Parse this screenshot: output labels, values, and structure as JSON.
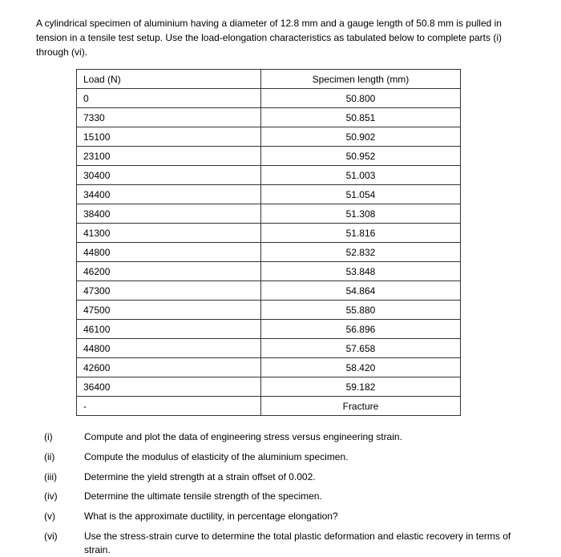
{
  "problem": {
    "statement": "A cylindrical specimen of aluminium having a diameter of 12.8 mm and a gauge length of 50.8 mm is pulled in tension in a tensile test setup. Use the load-elongation characteristics as tabulated below to complete parts (i) through (vi)."
  },
  "table": {
    "columns": [
      "Load (N)",
      "Specimen length (mm)"
    ],
    "column_widths": [
      "48%",
      "52%"
    ],
    "column_align": [
      "left",
      "center"
    ],
    "border_color": "#333333",
    "rows": [
      [
        "0",
        "50.800"
      ],
      [
        "7330",
        "50.851"
      ],
      [
        "15100",
        "50.902"
      ],
      [
        "23100",
        "50.952"
      ],
      [
        "30400",
        "51.003"
      ],
      [
        "34400",
        "51.054"
      ],
      [
        "38400",
        "51.308"
      ],
      [
        "41300",
        "51.816"
      ],
      [
        "44800",
        "52.832"
      ],
      [
        "46200",
        "53.848"
      ],
      [
        "47300",
        "54.864"
      ],
      [
        "47500",
        "55.880"
      ],
      [
        "46100",
        "56.896"
      ],
      [
        "44800",
        "57.658"
      ],
      [
        "42600",
        "58.420"
      ],
      [
        "36400",
        "59.182"
      ],
      [
        "-",
        "Fracture"
      ]
    ]
  },
  "questions": [
    {
      "num": "(i)",
      "text": "Compute and plot the data of engineering stress versus engineering strain."
    },
    {
      "num": "(ii)",
      "text": "Compute the modulus of elasticity of the aluminium specimen."
    },
    {
      "num": "(iii)",
      "text": "Determine the yield strength at a strain offset of 0.002."
    },
    {
      "num": "(iv)",
      "text": "Determine the ultimate tensile strength of the specimen."
    },
    {
      "num": "(v)",
      "text": "What is the approximate ductility, in percentage elongation?"
    },
    {
      "num": "(vi)",
      "text": "Use the stress-strain curve to determine the total plastic deformation and elastic recovery in terms of strain."
    }
  ],
  "style": {
    "background_color": "#ffffff",
    "text_color": "#000000",
    "font_family": "Arial, sans-serif",
    "body_fontsize": 12
  }
}
